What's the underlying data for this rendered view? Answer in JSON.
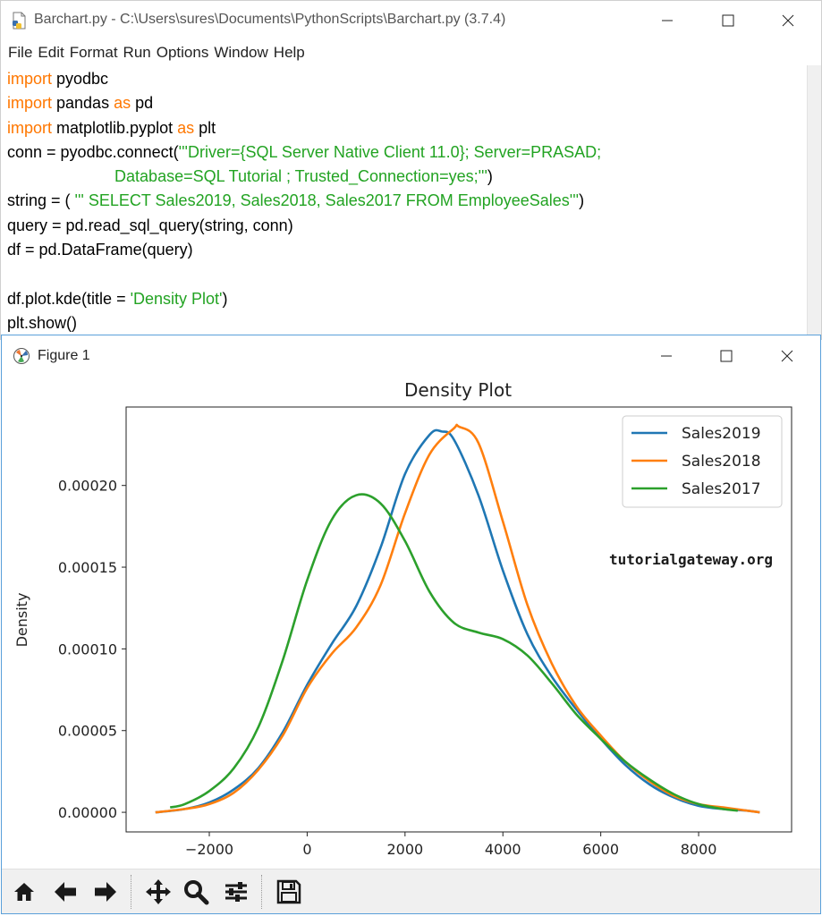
{
  "editor": {
    "title": "Barchart.py - C:\\Users\\sures\\Documents\\PythonScripts\\Barchart.py (3.7.4)",
    "menu": [
      "File",
      "Edit",
      "Format",
      "Run",
      "Options",
      "Window",
      "Help"
    ],
    "code": [
      [
        {
          "t": "import",
          "c": "kw"
        },
        {
          "t": " pyodbc"
        }
      ],
      [
        {
          "t": "import",
          "c": "kw"
        },
        {
          "t": " pandas "
        },
        {
          "t": "as",
          "c": "kw"
        },
        {
          "t": " pd"
        }
      ],
      [
        {
          "t": "import",
          "c": "kw"
        },
        {
          "t": " matplotlib.pyplot "
        },
        {
          "t": "as",
          "c": "kw"
        },
        {
          "t": " plt"
        }
      ],
      [
        {
          "t": "conn = pyodbc.connect("
        },
        {
          "t": "'''Driver={SQL Server Native Client 11.0}; Server=PRASAD;",
          "c": "str"
        }
      ],
      [
        {
          "t": "                        "
        },
        {
          "t": "Database=SQL Tutorial ; Trusted_Connection=yes;'''",
          "c": "str"
        },
        {
          "t": ")"
        }
      ],
      [
        {
          "t": "string = ( "
        },
        {
          "t": "''' SELECT Sales2019, Sales2018, Sales2017 FROM EmployeeSales'''",
          "c": "str"
        },
        {
          "t": ")"
        }
      ],
      [
        {
          "t": "query = pd.read_sql_query(string, conn)"
        }
      ],
      [
        {
          "t": "df = pd.DataFrame(query)"
        }
      ],
      [
        {
          "t": ""
        }
      ],
      [
        {
          "t": "df.plot.kde(title = "
        },
        {
          "t": "'Density Plot'",
          "c": "str"
        },
        {
          "t": ")"
        }
      ],
      [
        {
          "t": "plt.show()"
        }
      ]
    ]
  },
  "figure": {
    "title": "Figure 1",
    "watermark": "tutorialgateway.org",
    "toolbar_icons": [
      "home-icon",
      "back-arrow-icon",
      "forward-arrow-icon",
      "pan-move-icon",
      "zoom-magnifier-icon",
      "configure-subplots-icon",
      "save-floppy-icon"
    ]
  },
  "chart_data": {
    "type": "line",
    "title": "Density Plot",
    "xlabel": "",
    "ylabel": "Density",
    "xlim": [
      -3700,
      9900
    ],
    "ylim": [
      -1.2e-05,
      0.000248
    ],
    "xticks": [
      -2000,
      0,
      2000,
      4000,
      6000,
      8000
    ],
    "xtick_labels": [
      "−2000",
      "0",
      "2000",
      "4000",
      "6000",
      "8000"
    ],
    "yticks": [
      0.0,
      5e-05,
      0.0001,
      0.00015,
      0.0002
    ],
    "ytick_labels": [
      "0.00000",
      "0.00005",
      "0.00010",
      "0.00015",
      "0.00020"
    ],
    "legend_position": "top-right",
    "grid": false,
    "series": [
      {
        "name": "Sales2019",
        "color": "#1f77b4",
        "x": [
          -3100,
          -2500,
          -2000,
          -1500,
          -1000,
          -500,
          0,
          500,
          1000,
          1500,
          2000,
          2500,
          2750,
          3000,
          3500,
          4000,
          4500,
          5000,
          5500,
          6000,
          6500,
          7000,
          7500,
          8000,
          8500,
          9000,
          9250
        ],
        "y": [
          0.0,
          2e-06,
          6e-06,
          1.4e-05,
          2.7e-05,
          4.9e-05,
          7.8e-05,
          0.000103,
          0.000126,
          0.000162,
          0.000207,
          0.000231,
          0.000233,
          0.000228,
          0.000194,
          0.000148,
          0.000109,
          8.3e-05,
          6.3e-05,
          4.5e-05,
          2.9e-05,
          1.7e-05,
          9e-06,
          4e-06,
          2e-06,
          1e-06,
          0.0
        ]
      },
      {
        "name": "Sales2018",
        "color": "#ff7f0e",
        "x": [
          -3100,
          -2500,
          -2000,
          -1500,
          -1000,
          -500,
          0,
          500,
          1000,
          1500,
          2000,
          2500,
          3000,
          3100,
          3500,
          4000,
          4500,
          5000,
          5500,
          6000,
          6500,
          7000,
          7500,
          8000,
          8500,
          9000,
          9250
        ],
        "y": [
          0.0,
          2e-06,
          5e-06,
          1.2e-05,
          2.6e-05,
          4.7e-05,
          7.6e-05,
          9.7e-05,
          0.000113,
          0.000139,
          0.000183,
          0.000219,
          0.000235,
          0.000236,
          0.000226,
          0.000178,
          0.000127,
          9.1e-05,
          6.5e-05,
          4.7e-05,
          3.1e-05,
          1.9e-05,
          1e-05,
          5e-06,
          3e-06,
          1e-06,
          0.0
        ]
      },
      {
        "name": "Sales2017",
        "color": "#2ca02c",
        "x": [
          -2800,
          -2500,
          -2000,
          -1500,
          -1000,
          -500,
          0,
          500,
          1000,
          1500,
          2000,
          2500,
          3000,
          3500,
          4000,
          4500,
          5000,
          5500,
          6000,
          6500,
          7000,
          7500,
          8000,
          8500,
          8800
        ],
        "y": [
          3e-06,
          5e-06,
          1.3e-05,
          2.7e-05,
          5.2e-05,
          9.3e-05,
          0.000142,
          0.000179,
          0.000194,
          0.000189,
          0.000166,
          0.000135,
          0.000116,
          0.00011,
          0.000106,
          9.6e-05,
          7.9e-05,
          6e-05,
          4.5e-05,
          3.1e-05,
          2e-05,
          1.1e-05,
          5e-06,
          2e-06,
          1e-06
        ]
      }
    ]
  }
}
